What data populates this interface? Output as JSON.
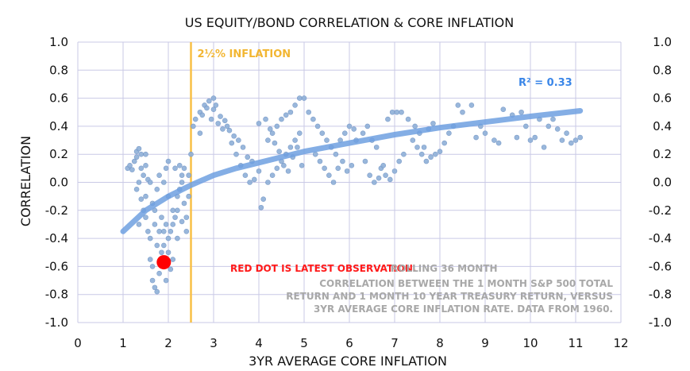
{
  "chart_data": {
    "type": "scatter",
    "title": "US EQUITY/BOND CORRELATION & CORE INFLATION",
    "xlabel": "3YR AVERAGE CORE INFLATION",
    "ylabel": "CORRELATION",
    "xlim": [
      0,
      12
    ],
    "ylim": [
      -1.0,
      1.0
    ],
    "x_ticks": [
      0,
      1,
      2,
      3,
      4,
      5,
      6,
      7,
      8,
      9,
      10,
      11,
      12
    ],
    "y_ticks": [
      1.0,
      0.8,
      0.6,
      0.4,
      0.2,
      0.0,
      -0.2,
      -0.4,
      -0.6,
      -0.8,
      -1.0
    ],
    "y_tick_labels": [
      "1.0",
      "0.8",
      "0.6",
      "0.4",
      "0.2",
      "0.0",
      "-0.2",
      "-0.4",
      "-0.6",
      "-0.8",
      "-1.0"
    ],
    "grid": true,
    "points": [
      [
        1.1,
        0.1
      ],
      [
        1.15,
        0.12
      ],
      [
        1.2,
        0.09
      ],
      [
        1.25,
        0.15
      ],
      [
        1.3,
        0.18
      ],
      [
        1.3,
        0.22
      ],
      [
        1.35,
        0.24
      ],
      [
        1.4,
        0.2
      ],
      [
        1.4,
        0.1
      ],
      [
        1.45,
        0.05
      ],
      [
        1.5,
        0.2
      ],
      [
        1.5,
        0.12
      ],
      [
        1.55,
        0.02
      ],
      [
        1.35,
        0.0
      ],
      [
        1.3,
        -0.05
      ],
      [
        1.4,
        -0.12
      ],
      [
        1.45,
        -0.2
      ],
      [
        1.5,
        -0.25
      ],
      [
        1.35,
        -0.3
      ],
      [
        1.55,
        -0.35
      ],
      [
        1.6,
        -0.4
      ],
      [
        1.5,
        -0.1
      ],
      [
        1.6,
        0.0
      ],
      [
        1.65,
        -0.15
      ],
      [
        1.7,
        -0.2
      ],
      [
        1.7,
        -0.3
      ],
      [
        1.6,
        -0.55
      ],
      [
        1.65,
        -0.7
      ],
      [
        1.7,
        -0.75
      ],
      [
        1.75,
        -0.78
      ],
      [
        1.8,
        -0.65
      ],
      [
        1.85,
        -0.5
      ],
      [
        1.9,
        -0.45
      ],
      [
        1.9,
        -0.35
      ],
      [
        1.95,
        -0.3
      ],
      [
        2.0,
        -0.4
      ],
      [
        2.0,
        -0.5
      ],
      [
        2.05,
        -0.62
      ],
      [
        2.1,
        -0.55
      ],
      [
        2.1,
        -0.3
      ],
      [
        2.15,
        -0.25
      ],
      [
        2.2,
        -0.2
      ],
      [
        2.2,
        -0.1
      ],
      [
        2.25,
        -0.05
      ],
      [
        2.3,
        0.0
      ],
      [
        2.3,
        0.05
      ],
      [
        2.35,
        0.1
      ],
      [
        2.35,
        -0.15
      ],
      [
        2.4,
        -0.25
      ],
      [
        2.4,
        -0.35
      ],
      [
        2.0,
        -0.1
      ],
      [
        1.9,
        0.0
      ],
      [
        1.95,
        0.1
      ],
      [
        2.0,
        0.15
      ],
      [
        1.8,
        0.05
      ],
      [
        1.75,
        -0.05
      ],
      [
        1.85,
        -0.25
      ],
      [
        2.1,
        -0.2
      ],
      [
        2.15,
        0.1
      ],
      [
        2.25,
        0.12
      ],
      [
        1.75,
        -0.45
      ],
      [
        1.8,
        -0.35
      ],
      [
        2.05,
        -0.35
      ],
      [
        2.2,
        -0.4
      ],
      [
        2.3,
        -0.28
      ],
      [
        2.45,
        -0.1
      ],
      [
        2.5,
        0.2
      ],
      [
        2.45,
        0.05
      ],
      [
        1.65,
        -0.6
      ],
      [
        1.95,
        -0.7
      ],
      [
        2.55,
        0.4
      ],
      [
        2.6,
        0.45
      ],
      [
        2.7,
        0.5
      ],
      [
        2.8,
        0.55
      ],
      [
        2.9,
        0.58
      ],
      [
        3.0,
        0.52
      ],
      [
        2.95,
        0.45
      ],
      [
        3.1,
        0.42
      ],
      [
        3.2,
        0.38
      ],
      [
        3.3,
        0.4
      ],
      [
        2.75,
        0.48
      ],
      [
        2.85,
        0.53
      ],
      [
        3.0,
        0.6
      ],
      [
        3.05,
        0.55
      ],
      [
        3.15,
        0.47
      ],
      [
        3.25,
        0.44
      ],
      [
        3.35,
        0.37
      ],
      [
        2.7,
        0.35
      ],
      [
        3.4,
        0.28
      ],
      [
        3.5,
        0.2
      ],
      [
        3.6,
        0.12
      ],
      [
        3.7,
        0.05
      ],
      [
        3.8,
        0.0
      ],
      [
        3.9,
        0.02
      ],
      [
        4.0,
        0.08
      ],
      [
        3.55,
        0.3
      ],
      [
        3.65,
        0.25
      ],
      [
        3.75,
        0.18
      ],
      [
        3.85,
        0.15
      ],
      [
        3.45,
        0.33
      ],
      [
        4.1,
        -0.12
      ],
      [
        4.05,
        -0.18
      ],
      [
        4.2,
        0.0
      ],
      [
        4.3,
        0.05
      ],
      [
        4.4,
        0.1
      ],
      [
        4.5,
        0.15
      ],
      [
        4.6,
        0.2
      ],
      [
        4.7,
        0.25
      ],
      [
        4.8,
        0.3
      ],
      [
        4.9,
        0.35
      ],
      [
        4.2,
        0.3
      ],
      [
        4.3,
        0.35
      ],
      [
        4.4,
        0.4
      ],
      [
        4.5,
        0.45
      ],
      [
        4.6,
        0.48
      ],
      [
        4.7,
        0.5
      ],
      [
        4.8,
        0.55
      ],
      [
        4.9,
        0.6
      ],
      [
        5.0,
        0.6
      ],
      [
        5.1,
        0.5
      ],
      [
        4.0,
        0.42
      ],
      [
        4.15,
        0.45
      ],
      [
        4.25,
        0.38
      ],
      [
        4.35,
        0.28
      ],
      [
        4.45,
        0.22
      ],
      [
        4.55,
        0.12
      ],
      [
        4.65,
        0.08
      ],
      [
        4.75,
        0.18
      ],
      [
        4.85,
        0.25
      ],
      [
        4.95,
        0.12
      ],
      [
        5.2,
        0.45
      ],
      [
        5.3,
        0.4
      ],
      [
        5.4,
        0.35
      ],
      [
        5.5,
        0.3
      ],
      [
        5.6,
        0.25
      ],
      [
        5.7,
        0.2
      ],
      [
        5.8,
        0.3
      ],
      [
        5.9,
        0.35
      ],
      [
        6.0,
        0.4
      ],
      [
        6.1,
        0.38
      ],
      [
        5.25,
        0.2
      ],
      [
        5.35,
        0.15
      ],
      [
        5.45,
        0.1
      ],
      [
        5.55,
        0.05
      ],
      [
        5.65,
        0.0
      ],
      [
        5.75,
        0.1
      ],
      [
        5.85,
        0.15
      ],
      [
        5.95,
        0.08
      ],
      [
        6.05,
        0.12
      ],
      [
        6.15,
        0.3
      ],
      [
        6.3,
        0.35
      ],
      [
        6.4,
        0.4
      ],
      [
        6.5,
        0.3
      ],
      [
        6.6,
        0.25
      ],
      [
        6.7,
        0.1
      ],
      [
        6.8,
        0.05
      ],
      [
        6.9,
        0.02
      ],
      [
        7.0,
        0.08
      ],
      [
        7.1,
        0.15
      ],
      [
        7.2,
        0.2
      ],
      [
        6.35,
        0.15
      ],
      [
        6.45,
        0.05
      ],
      [
        6.55,
        0.0
      ],
      [
        6.65,
        0.03
      ],
      [
        6.75,
        0.12
      ],
      [
        6.85,
        0.45
      ],
      [
        6.95,
        0.5
      ],
      [
        7.05,
        0.5
      ],
      [
        7.15,
        0.5
      ],
      [
        7.3,
        0.45
      ],
      [
        7.4,
        0.3
      ],
      [
        7.5,
        0.25
      ],
      [
        7.6,
        0.2
      ],
      [
        7.7,
        0.15
      ],
      [
        7.8,
        0.18
      ],
      [
        7.9,
        0.2
      ],
      [
        8.0,
        0.22
      ],
      [
        8.1,
        0.28
      ],
      [
        8.2,
        0.35
      ],
      [
        8.3,
        0.4
      ],
      [
        7.45,
        0.4
      ],
      [
        7.55,
        0.35
      ],
      [
        7.65,
        0.25
      ],
      [
        7.75,
        0.38
      ],
      [
        7.85,
        0.42
      ],
      [
        8.4,
        0.55
      ],
      [
        8.5,
        0.5
      ],
      [
        8.7,
        0.55
      ],
      [
        8.9,
        0.4
      ],
      [
        9.0,
        0.35
      ],
      [
        9.2,
        0.3
      ],
      [
        9.4,
        0.52
      ],
      [
        9.6,
        0.48
      ],
      [
        9.8,
        0.5
      ],
      [
        9.9,
        0.4
      ],
      [
        10.0,
        0.3
      ],
      [
        10.1,
        0.32
      ],
      [
        10.3,
        0.25
      ],
      [
        10.5,
        0.45
      ],
      [
        10.6,
        0.38
      ],
      [
        10.7,
        0.3
      ],
      [
        10.8,
        0.35
      ],
      [
        10.9,
        0.28
      ],
      [
        11.0,
        0.3
      ],
      [
        11.1,
        0.32
      ],
      [
        10.4,
        0.4
      ],
      [
        10.2,
        0.45
      ],
      [
        9.7,
        0.32
      ],
      [
        9.3,
        0.28
      ],
      [
        8.8,
        0.32
      ]
    ],
    "latest_point": [
      1.9,
      -0.57
    ],
    "trendline": {
      "type": "logarithmic",
      "points": [
        [
          1.0,
          -0.35
        ],
        [
          1.5,
          -0.2
        ],
        [
          2.0,
          -0.1
        ],
        [
          2.5,
          -0.02
        ],
        [
          3.0,
          0.05
        ],
        [
          3.5,
          0.1
        ],
        [
          4.0,
          0.14
        ],
        [
          5.0,
          0.22
        ],
        [
          6.0,
          0.28
        ],
        [
          7.0,
          0.34
        ],
        [
          8.0,
          0.39
        ],
        [
          9.0,
          0.43
        ],
        [
          10.0,
          0.47
        ],
        [
          11.1,
          0.51
        ]
      ]
    },
    "reference_line": {
      "x": 2.5,
      "label": "2½% INFLATION",
      "color": "#f9c046"
    },
    "annotations": {
      "r2": "R² = 0.33",
      "note_red": "RED DOT IS LATEST OBSERVATION.",
      "note_lines": [
        "ROLLING 36 MONTH",
        "CORRELATION BETWEEN THE 1 MONTH S&P 500 TOTAL",
        "RETURN AND 1 MONTH 10 YEAR TREASURY RETURN, VERSUS",
        "3YR AVERAGE CORE INFLATION RATE.  DATA FROM 1960."
      ]
    },
    "colors": {
      "points": "#8fb0d8",
      "trendline": "#6fa0e0",
      "latest": "#ff0000",
      "grid": "#c9c9e6"
    }
  }
}
